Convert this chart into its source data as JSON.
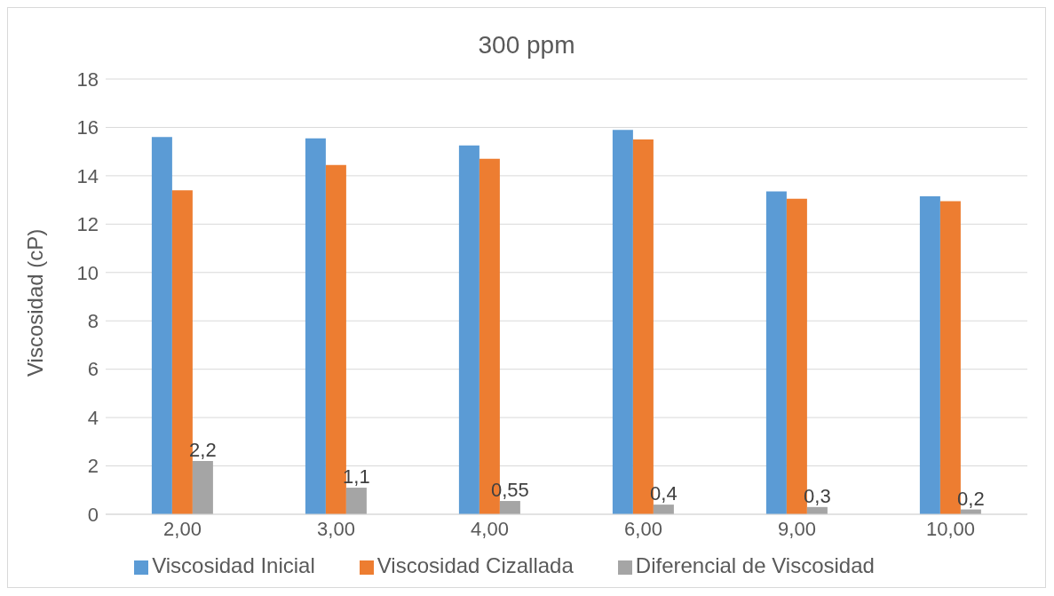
{
  "chart_data": {
    "type": "bar",
    "title": "300 ppm",
    "ylabel": "Viscosidad (cP)",
    "categories": [
      "2,00",
      "3,00",
      "4,00",
      "6,00",
      "9,00",
      "10,00"
    ],
    "series": [
      {
        "name": "Viscosidad Inicial",
        "color": "#5b9bd5",
        "values": [
          15.6,
          15.55,
          15.25,
          15.9,
          13.35,
          13.15
        ]
      },
      {
        "name": "Viscosidad Cizallada",
        "color": "#ed7d31",
        "values": [
          13.4,
          14.45,
          14.7,
          15.5,
          13.05,
          12.95
        ]
      },
      {
        "name": "Diferencial de Viscosidad",
        "color": "#a5a5a5",
        "values": [
          2.2,
          1.1,
          0.55,
          0.4,
          0.3,
          0.2
        ],
        "value_labels": [
          "2,2",
          "1,1",
          "0,55",
          "0,4",
          "0,3",
          "0,2"
        ]
      }
    ],
    "ylim": [
      0,
      18
    ],
    "yticks": [
      0,
      2,
      4,
      6,
      8,
      10,
      12,
      14,
      16,
      18
    ],
    "grid": "y",
    "legend": "bottom"
  }
}
